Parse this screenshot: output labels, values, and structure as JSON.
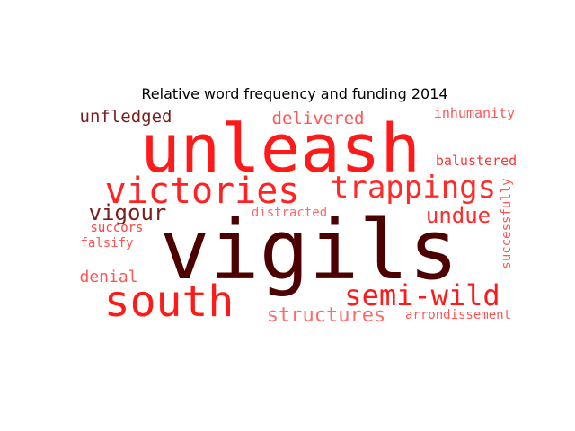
{
  "chart_data": {
    "type": "wordcloud",
    "title": "Relative word frequency and funding 2014",
    "colors": {
      "dark": "#4d0000",
      "mid": "#7a1f1f",
      "bright": "#ff1a1a",
      "light": "#ff5555"
    },
    "words": [
      {
        "text": "vigils",
        "weight": 1.0,
        "color": "#4d0000",
        "orientation": "horizontal"
      },
      {
        "text": "unleash",
        "weight": 0.8,
        "color": "#ff1a1a",
        "orientation": "horizontal"
      },
      {
        "text": "south",
        "weight": 0.5,
        "color": "#ff1a1a",
        "orientation": "horizontal"
      },
      {
        "text": "victories",
        "weight": 0.45,
        "color": "#ff2222",
        "orientation": "horizontal"
      },
      {
        "text": "trappings",
        "weight": 0.4,
        "color": "#ff2a2a",
        "orientation": "horizontal"
      },
      {
        "text": "semi-wild",
        "weight": 0.38,
        "color": "#ff1a1a",
        "orientation": "horizontal"
      },
      {
        "text": "undue",
        "weight": 0.28,
        "color": "#ff2a2a",
        "orientation": "horizontal"
      },
      {
        "text": "vigour",
        "weight": 0.27,
        "color": "#7a1f1f",
        "orientation": "horizontal"
      },
      {
        "text": "structures",
        "weight": 0.26,
        "color": "#ff6a6a",
        "orientation": "horizontal"
      },
      {
        "text": "unfledged",
        "weight": 0.23,
        "color": "#7a1f1f",
        "orientation": "horizontal"
      },
      {
        "text": "delivered",
        "weight": 0.22,
        "color": "#ff5555",
        "orientation": "horizontal"
      },
      {
        "text": "denial",
        "weight": 0.22,
        "color": "#ff5555",
        "orientation": "horizontal"
      },
      {
        "text": "inhumanity",
        "weight": 0.18,
        "color": "#ff5555",
        "orientation": "horizontal"
      },
      {
        "text": "balustered",
        "weight": 0.18,
        "color": "#ff3333",
        "orientation": "horizontal"
      },
      {
        "text": "distracted",
        "weight": 0.17,
        "color": "#ff6a6a",
        "orientation": "horizontal"
      },
      {
        "text": "successfully",
        "weight": 0.17,
        "color": "#ff5555",
        "orientation": "vertical"
      },
      {
        "text": "arrondissement",
        "weight": 0.17,
        "color": "#ff5555",
        "orientation": "horizontal"
      },
      {
        "text": "succors",
        "weight": 0.16,
        "color": "#ff4444",
        "orientation": "horizontal"
      },
      {
        "text": "falsify",
        "weight": 0.16,
        "color": "#ff5555",
        "orientation": "horizontal"
      }
    ]
  }
}
